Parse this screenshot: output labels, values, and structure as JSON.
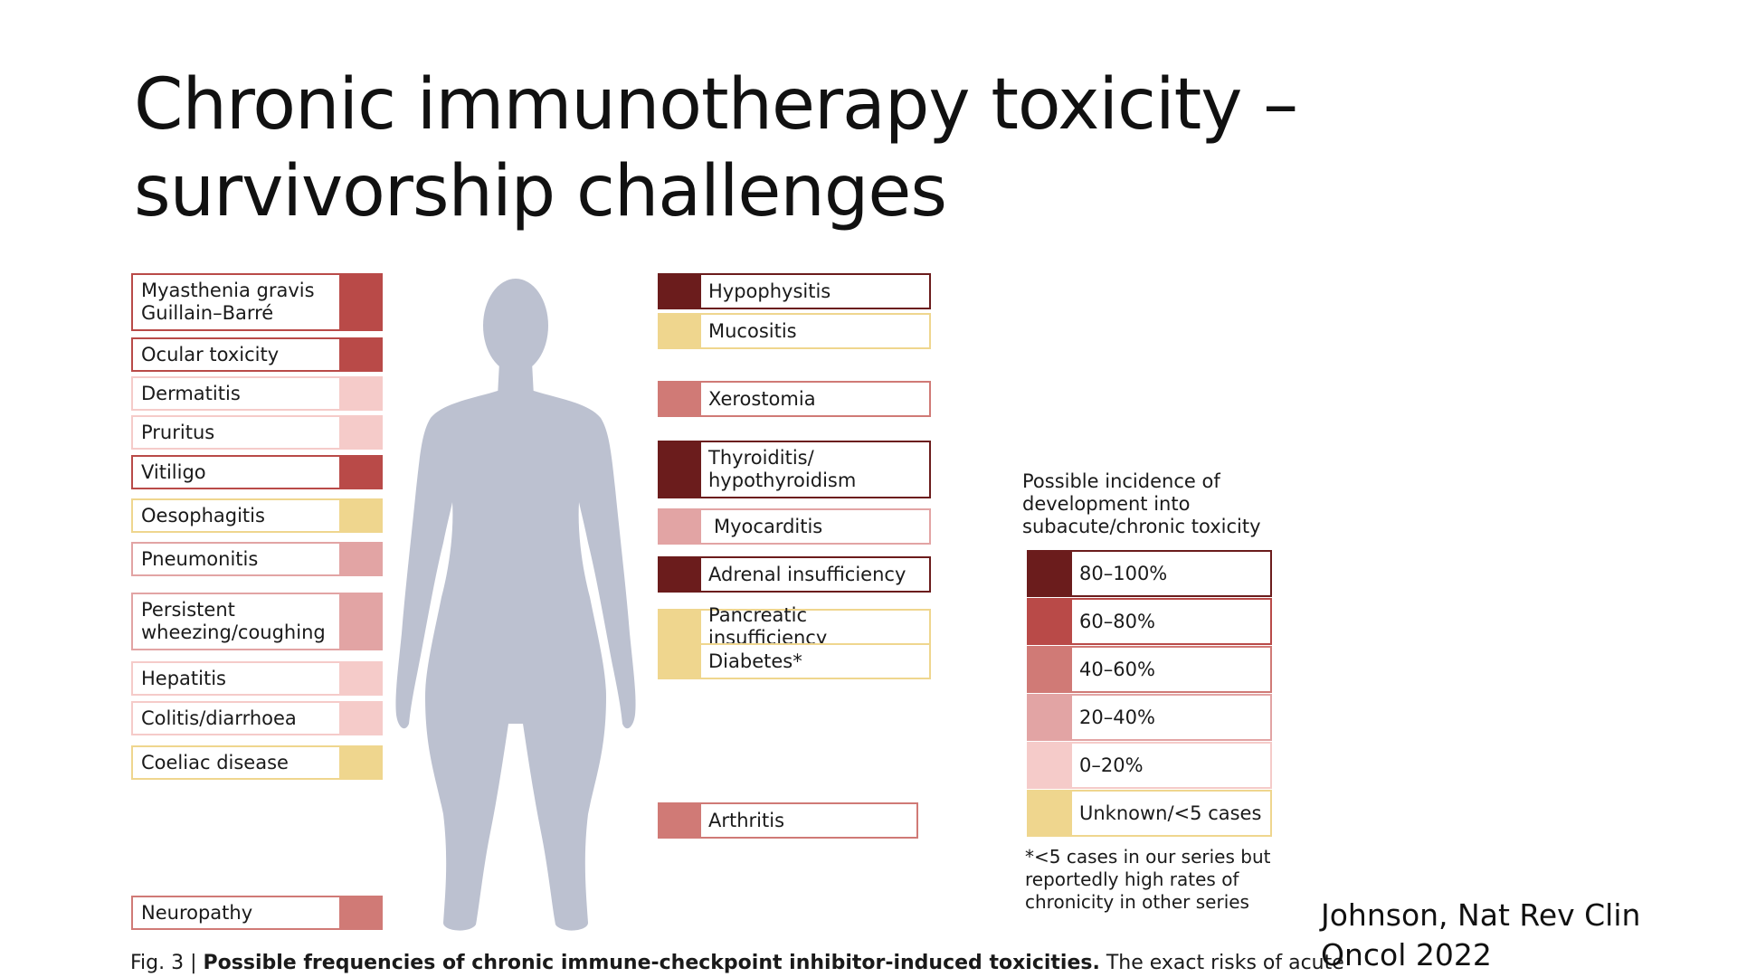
{
  "title": {
    "line1": "Chronic immunotherapy toxicity –",
    "line2": "survivorship challenges"
  },
  "colors": {
    "80-100": "#6b1c1c",
    "60-80": "#b94a48",
    "40-60": "#d07a76",
    "20-40": "#e2a4a4",
    "0-20": "#f5cbc9",
    "unknown": "#efd68e",
    "body": "#bcc1d0"
  },
  "left_items": [
    {
      "label": "Myasthenia gravis\nGuillain–Barré",
      "level": "60-80"
    },
    {
      "label": "Ocular toxicity",
      "level": "60-80"
    },
    {
      "label": "Dermatitis",
      "level": "0-20"
    },
    {
      "label": "Pruritus",
      "level": "0-20"
    },
    {
      "label": "Vitiligo",
      "level": "60-80"
    },
    {
      "label": "Oesophagitis",
      "level": "unknown"
    },
    {
      "label": "Pneumonitis",
      "level": "20-40"
    },
    {
      "label": "Persistent\nwheezing/coughing",
      "level": "20-40"
    },
    {
      "label": "Hepatitis",
      "level": "0-20"
    },
    {
      "label": "Colitis/diarrhoea",
      "level": "0-20"
    },
    {
      "label": "Coeliac disease",
      "level": "unknown"
    },
    {
      "label": "Neuropathy",
      "level": "40-60"
    }
  ],
  "right_items": [
    {
      "label": "Hypophysitis",
      "level": "80-100"
    },
    {
      "label": "Mucositis",
      "level": "unknown"
    },
    {
      "label": "Xerostomia",
      "level": "40-60"
    },
    {
      "label": "Thyroiditis/\nhypothyroidism",
      "level": "80-100"
    },
    {
      "label": "Myocarditis",
      "level": "20-40"
    },
    {
      "label": "Adrenal insufficiency",
      "level": "80-100"
    },
    {
      "label": "Pancreatic insufficiency",
      "level": "unknown"
    },
    {
      "label": "Diabetes*",
      "level": "unknown"
    },
    {
      "label": "Arthritis",
      "level": "40-60"
    }
  ],
  "legend": {
    "title": "Possible incidence of development into subacute/chronic toxicity",
    "items": [
      {
        "label": "80–100%",
        "level": "80-100"
      },
      {
        "label": "60–80%",
        "level": "60-80"
      },
      {
        "label": "40–60%",
        "level": "40-60"
      },
      {
        "label": "20–40%",
        "level": "20-40"
      },
      {
        "label": "0–20%",
        "level": "0-20"
      },
      {
        "label": "Unknown/<5 cases",
        "level": "unknown"
      }
    ],
    "note": "*<5 cases in our series but reportedly high rates of chronicity in other series"
  },
  "caption": {
    "prefix": "Fig. 3 | ",
    "bold": "Possible frequencies of chronic immune-checkpoint inhibitor-induced toxicities.",
    "rest": " The exact risks of acute"
  },
  "citation": {
    "line1": "Johnson, Nat Rev Clin",
    "line2": "Oncol 2022"
  }
}
